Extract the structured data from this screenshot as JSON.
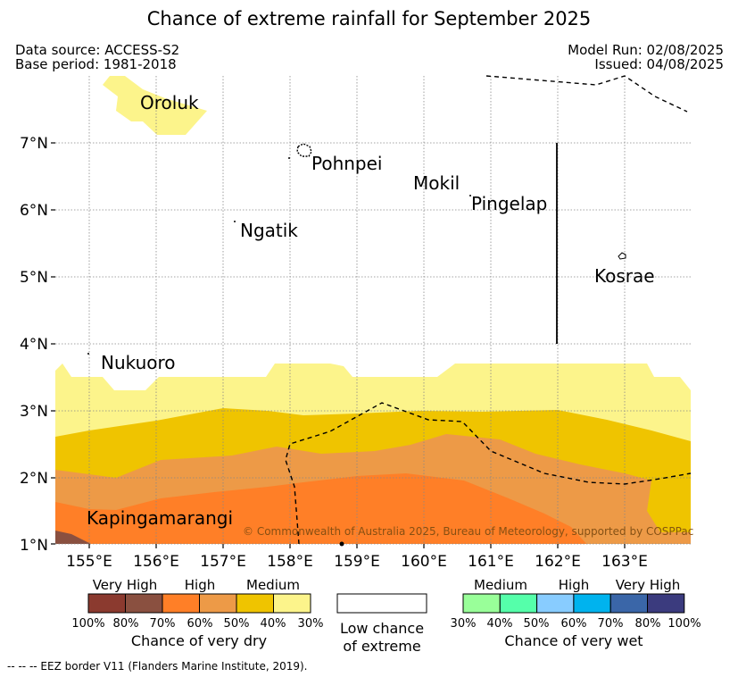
{
  "title": "Chance of extreme rainfall for September 2025",
  "meta": {
    "data_source": "Data source: ACCESS-S2",
    "base_period": "Base period: 1981-2018",
    "model_run": "Model Run: 02/08/2025",
    "issued": "Issued: 04/08/2025"
  },
  "axes": {
    "lat_labels": [
      "7°N",
      "6°N",
      "5°N",
      "4°N",
      "3°N",
      "2°N",
      "1°N"
    ],
    "lon_labels": [
      "155°E",
      "156°E",
      "157°E",
      "158°E",
      "159°E",
      "160°E",
      "161°E",
      "162°E",
      "163°E"
    ]
  },
  "places": {
    "oroluk": "Oroluk",
    "pohnpei": "Pohnpei",
    "mokil": "Mokil",
    "pingelap": "Pingelap",
    "ngatik": "Ngatik",
    "kosrae": "Kosrae",
    "nukuoro": "Nukuoro",
    "kapingamarangi": "Kapingamarangi"
  },
  "copyright": "© Commonwealth of Australia 2025, Bureau of Meteorology, supported by COSPPac",
  "legend": {
    "dry": {
      "head_very_high": "Very High",
      "head_high": "High",
      "head_medium": "Medium",
      "ticks": [
        "100%",
        "80%",
        "70%",
        "60%",
        "50%",
        "40%",
        "30%"
      ],
      "colors": [
        "#8b3a2f",
        "#8a5040",
        "#ff7f27",
        "#ed9a47",
        "#efc400",
        "#fcf48b"
      ],
      "caption": "Chance of very dry"
    },
    "neutral": {
      "caption_line1": "Low chance",
      "caption_line2": "of extreme",
      "color": "#ffffff"
    },
    "wet": {
      "head_medium": "Medium",
      "head_high": "High",
      "head_very_high": "Very High",
      "ticks": [
        "30%",
        "40%",
        "50%",
        "60%",
        "70%",
        "80%",
        "100%"
      ],
      "colors": [
        "#99ff99",
        "#55ffaa",
        "#88ccff",
        "#00b3ee",
        "#3a66a8",
        "#3b3b7e"
      ],
      "caption": "Chance of very wet"
    }
  },
  "footnote": "--  --  -- EEZ border V11 (Flanders Marine Institute, 2019)."
}
